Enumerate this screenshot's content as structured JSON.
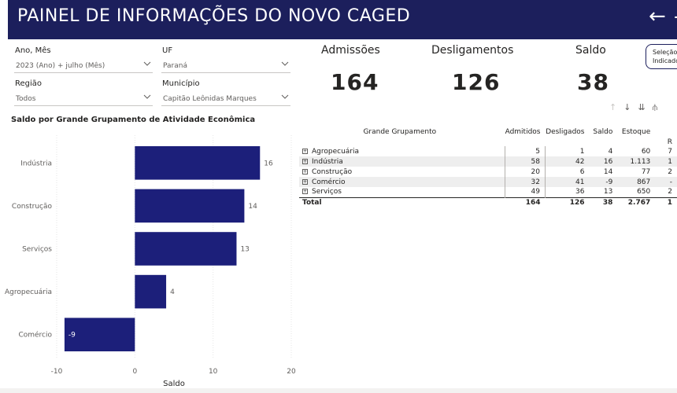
{
  "header": {
    "title": "PAINEL DE INFORMAÇÕES DO NOVO CAGED",
    "back_glyph": "←",
    "dash_glyph": "-"
  },
  "filters": {
    "ano_mes": {
      "label": "Ano, Mês",
      "value": "2023 (Ano) + julho (Mês)"
    },
    "uf": {
      "label": "UF",
      "value": "Paraná"
    },
    "regiao": {
      "label": "Região",
      "value": "Todos"
    },
    "municipio": {
      "label": "Município",
      "value": "Capitão Leônidas Marques"
    }
  },
  "cards": {
    "admissoes": {
      "label": "Admissões",
      "value": "164"
    },
    "desligamentos": {
      "label": "Desligamentos",
      "value": "126"
    },
    "saldo": {
      "label": "Saldo",
      "value": "38"
    }
  },
  "selection_button": {
    "line1": "Seleção",
    "line2": "Indicado"
  },
  "visual_icons": [
    "↑",
    "↓",
    "⇊",
    "⫛"
  ],
  "chart_data": {
    "type": "bar",
    "orientation": "horizontal",
    "title": "Saldo por Grande Grupamento de Atividade Econômica",
    "xlabel": "Saldo",
    "ylabel": "",
    "categories": [
      "Indústria",
      "Construção",
      "Serviços",
      "Agropecuária",
      "Comércio"
    ],
    "values": [
      16,
      14,
      13,
      4,
      -9
    ],
    "xlim": [
      -10,
      20
    ],
    "xticks": [
      -10,
      0,
      10,
      20
    ],
    "color": "#1c1f7a",
    "grid": true
  },
  "table": {
    "headers": [
      "Grande Grupamento",
      "Admitidos",
      "Desligados",
      "Saldo",
      "Estoque",
      "R"
    ],
    "rows": [
      {
        "name": "Agropecuária",
        "admitidos": "5",
        "desligados": "1",
        "saldo": "4",
        "estoque": "60",
        "extra": "7"
      },
      {
        "name": "Indústria",
        "admitidos": "58",
        "desligados": "42",
        "saldo": "16",
        "estoque": "1.113",
        "extra": "1"
      },
      {
        "name": "Construção",
        "admitidos": "20",
        "desligados": "6",
        "saldo": "14",
        "estoque": "77",
        "extra": "2"
      },
      {
        "name": "Comércio",
        "admitidos": "32",
        "desligados": "41",
        "saldo": "-9",
        "estoque": "867",
        "extra": "-"
      },
      {
        "name": "Serviços",
        "admitidos": "49",
        "desligados": "36",
        "saldo": "13",
        "estoque": "650",
        "extra": "2"
      }
    ],
    "total": {
      "name": "Total",
      "admitidos": "164",
      "desligados": "126",
      "saldo": "38",
      "estoque": "2.767",
      "extra": "1"
    }
  }
}
